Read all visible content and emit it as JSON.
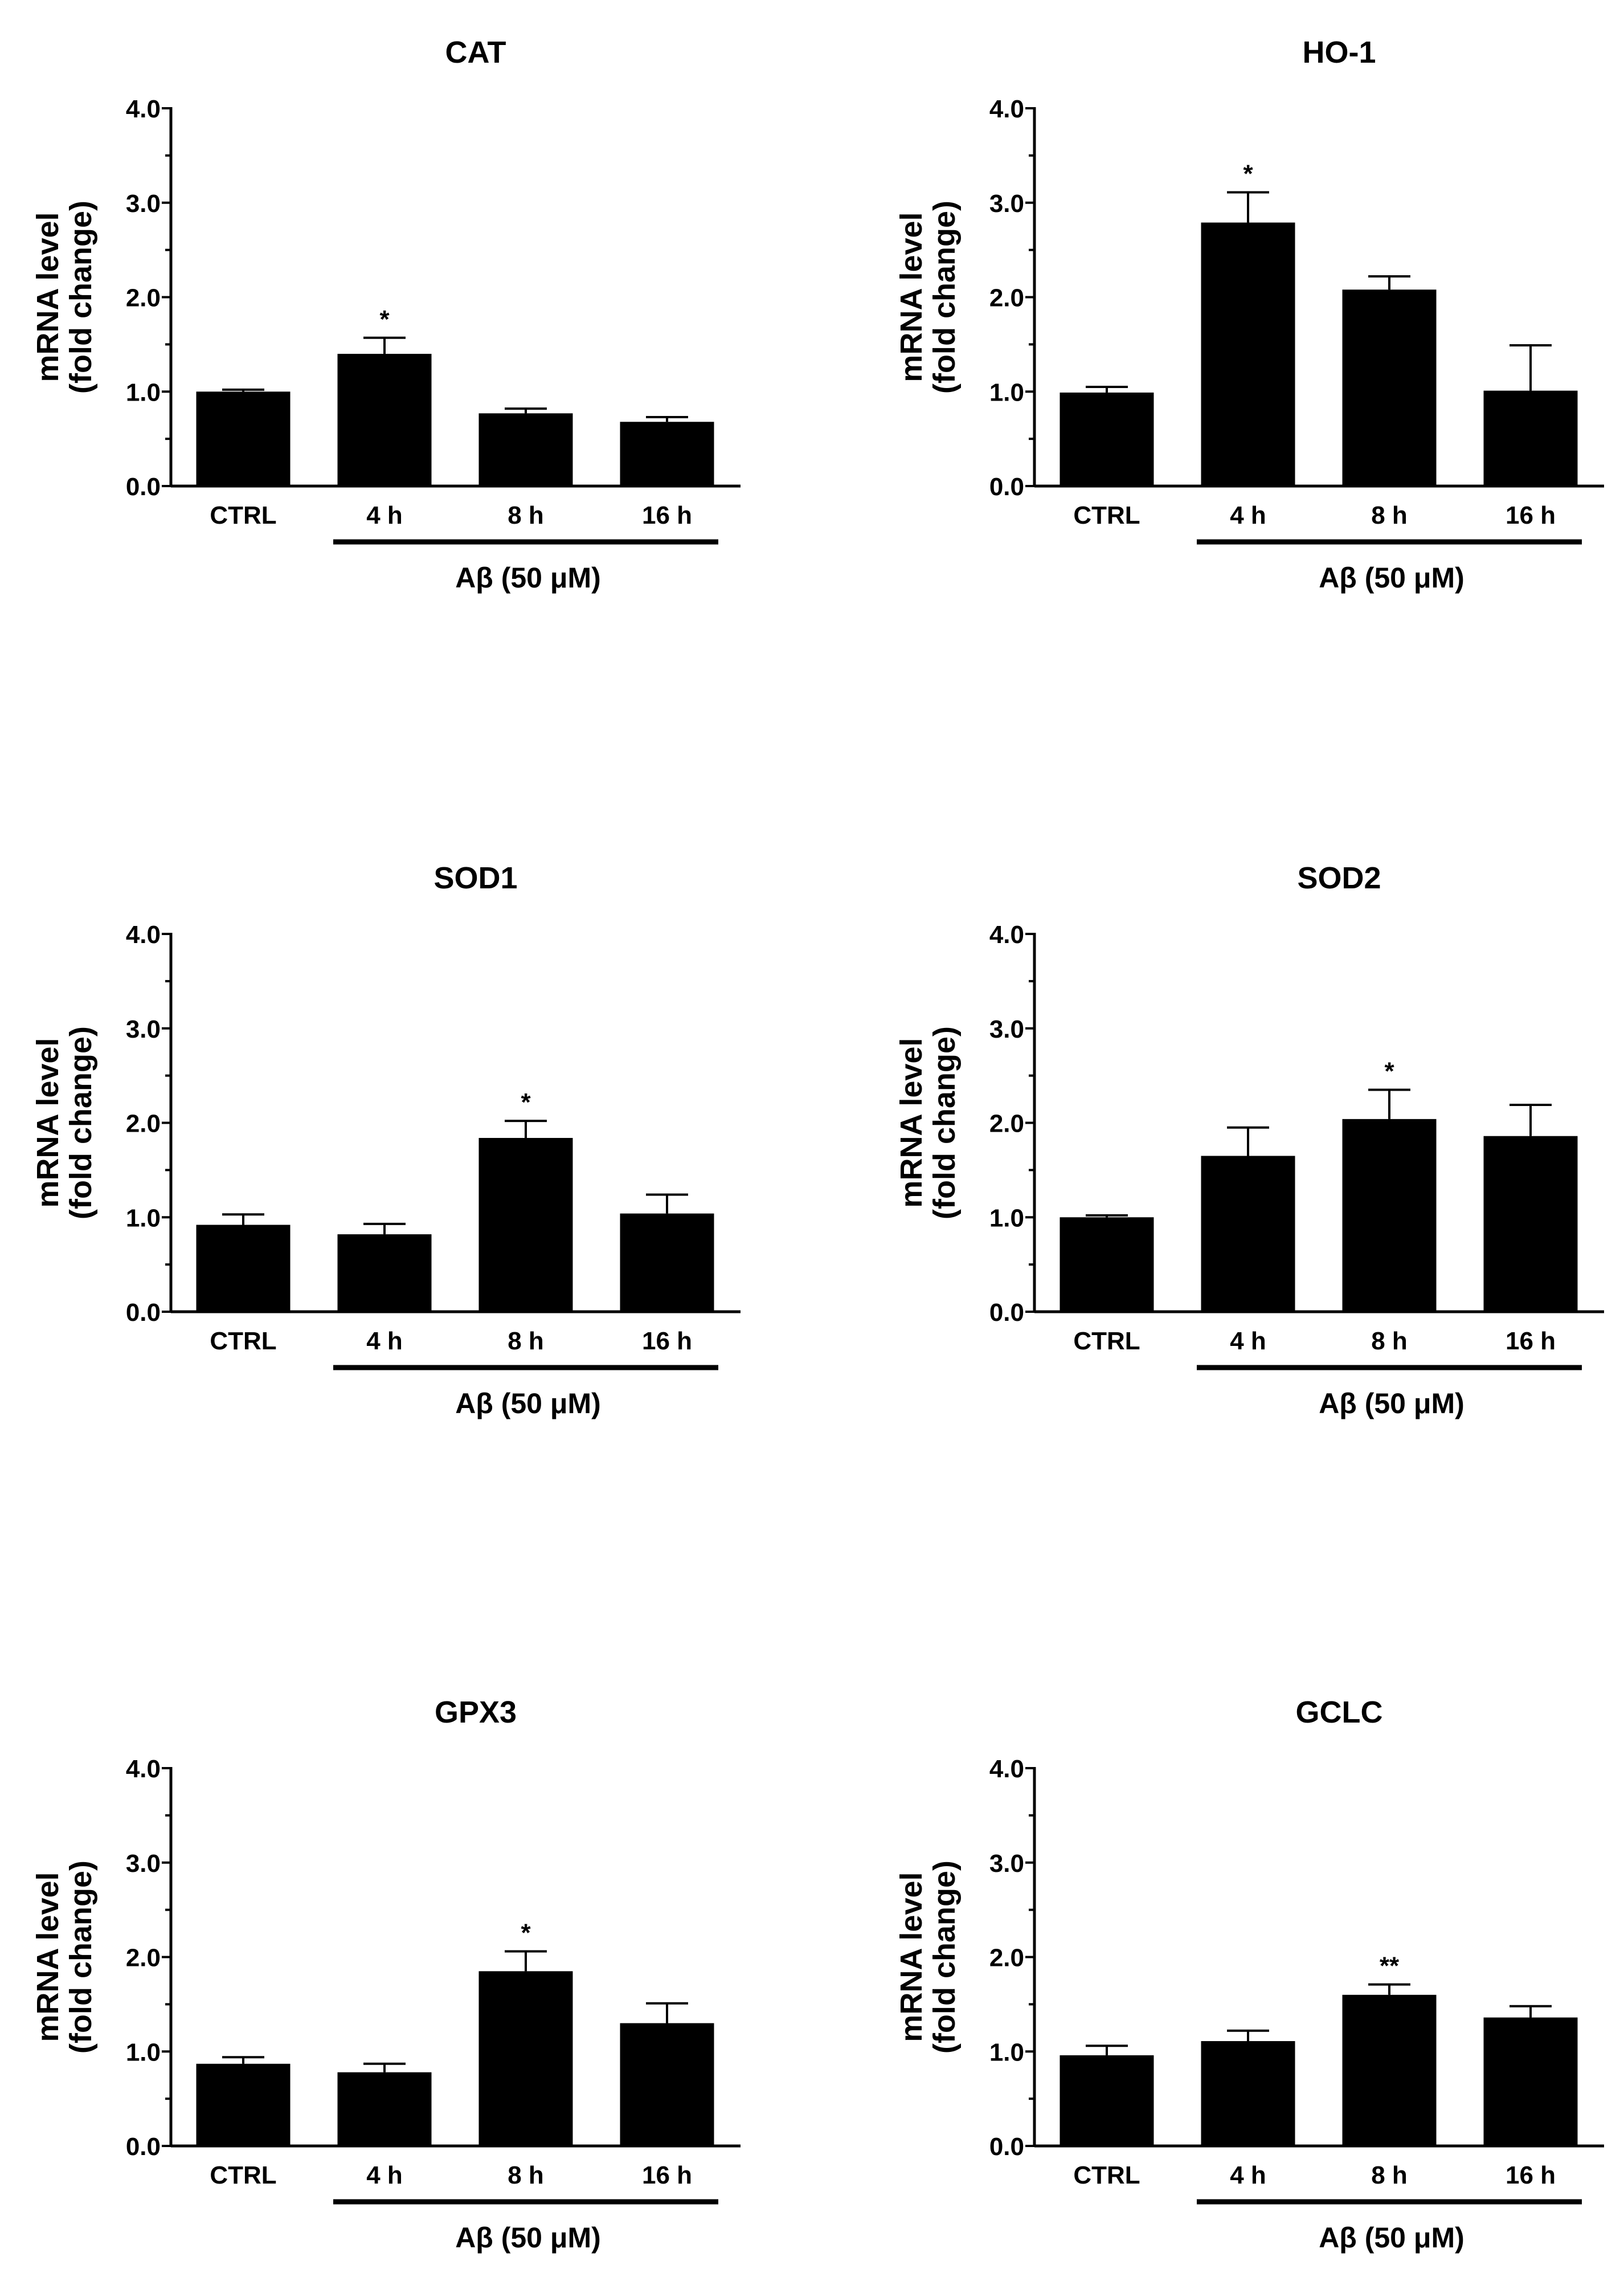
{
  "chart_data": [
    {
      "type": "bar",
      "title": "CAT",
      "ylabel": "mRNA level",
      "ylabel2": "(fold change)",
      "categories": [
        "CTRL",
        "4 h",
        "8 h",
        "16 h"
      ],
      "values": [
        1.0,
        1.4,
        0.77,
        0.68
      ],
      "errors": [
        0.02,
        0.17,
        0.05,
        0.05
      ],
      "significance": [
        "",
        "*",
        "",
        ""
      ],
      "group_label": "Aβ (50 μM)",
      "ylim": [
        0,
        4
      ],
      "yticks": [
        "0.0",
        "1.0",
        "2.0",
        "3.0",
        "4.0"
      ]
    },
    {
      "type": "bar",
      "title": "HO-1",
      "ylabel": "mRNA level",
      "ylabel2": "(fold change)",
      "categories": [
        "CTRL",
        "4 h",
        "8 h",
        "16 h"
      ],
      "values": [
        0.99,
        2.79,
        2.08,
        1.01
      ],
      "errors": [
        0.06,
        0.32,
        0.14,
        0.48
      ],
      "significance": [
        "",
        "*",
        "",
        ""
      ],
      "group_label": "Aβ (50 μM)",
      "ylim": [
        0,
        4
      ],
      "yticks": [
        "0.0",
        "1.0",
        "2.0",
        "3.0",
        "4.0"
      ]
    },
    {
      "type": "bar",
      "title": "SOD1",
      "ylabel": "mRNA level",
      "ylabel2": "(fold change)",
      "categories": [
        "CTRL",
        "4 h",
        "8 h",
        "16 h"
      ],
      "values": [
        0.92,
        0.82,
        1.84,
        1.04
      ],
      "errors": [
        0.11,
        0.11,
        0.18,
        0.2
      ],
      "significance": [
        "",
        "",
        "*",
        ""
      ],
      "group_label": "Aβ (50 μM)",
      "ylim": [
        0,
        4
      ],
      "yticks": [
        "0.0",
        "1.0",
        "2.0",
        "3.0",
        "4.0"
      ]
    },
    {
      "type": "bar",
      "title": "SOD2",
      "ylabel": "mRNA level",
      "ylabel2": "(fold change)",
      "categories": [
        "CTRL",
        "4 h",
        "8 h",
        "16 h"
      ],
      "values": [
        1.0,
        1.65,
        2.04,
        1.86
      ],
      "errors": [
        0.02,
        0.3,
        0.31,
        0.33
      ],
      "significance": [
        "",
        "",
        "*",
        ""
      ],
      "group_label": "Aβ (50 μM)",
      "ylim": [
        0,
        4
      ],
      "yticks": [
        "0.0",
        "1.0",
        "2.0",
        "3.0",
        "4.0"
      ]
    },
    {
      "type": "bar",
      "title": "GPX3",
      "ylabel": "mRNA level",
      "ylabel2": "(fold change)",
      "categories": [
        "CTRL",
        "4 h",
        "8 h",
        "16 h"
      ],
      "values": [
        0.87,
        0.78,
        1.85,
        1.3
      ],
      "errors": [
        0.07,
        0.09,
        0.21,
        0.21
      ],
      "significance": [
        "",
        "",
        "*",
        ""
      ],
      "group_label": "Aβ (50 μM)",
      "ylim": [
        0,
        4
      ],
      "yticks": [
        "0.0",
        "1.0",
        "2.0",
        "3.0",
        "4.0"
      ]
    },
    {
      "type": "bar",
      "title": "GCLC",
      "ylabel": "mRNA level",
      "ylabel2": "(fold change)",
      "categories": [
        "CTRL",
        "4 h",
        "8 h",
        "16 h"
      ],
      "values": [
        0.96,
        1.11,
        1.6,
        1.36
      ],
      "errors": [
        0.1,
        0.11,
        0.11,
        0.12
      ],
      "significance": [
        "",
        "",
        "**",
        ""
      ],
      "group_label": "Aβ (50 μM)",
      "ylim": [
        0,
        4
      ],
      "yticks": [
        "0.0",
        "1.0",
        "2.0",
        "3.0",
        "4.0"
      ]
    }
  ]
}
